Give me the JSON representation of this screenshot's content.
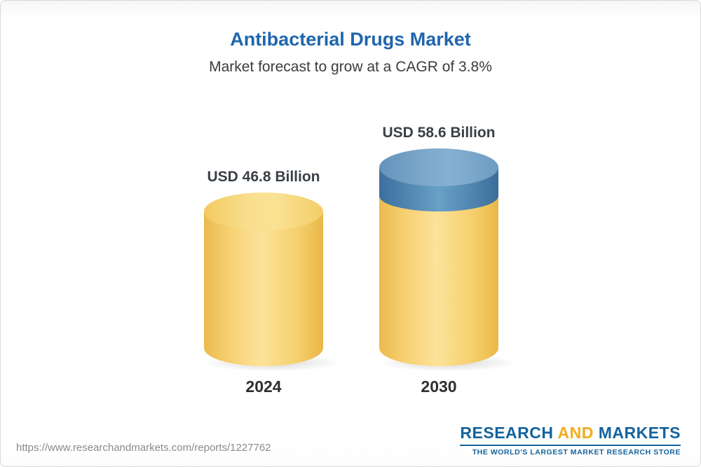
{
  "chart_data": {
    "type": "bar",
    "subtype": "cylinder",
    "title": "Antibacterial Drugs Market",
    "subtitle": "Market forecast to grow at a CAGR of 3.8%",
    "categories": [
      "2024",
      "2030"
    ],
    "values": [
      46.8,
      58.6
    ],
    "value_labels": [
      "USD 46.8 Billion",
      "USD 58.6 Billion"
    ],
    "unit": "USD Billion",
    "cagr_percent": 3.8,
    "legend": "none",
    "axes": "none",
    "colors": {
      "bar_base": "#F5CF6B",
      "bar_growth": "#5C8FBA",
      "title": "#1F66AD"
    }
  },
  "footer": {
    "source_url": "https://www.researchandmarkets.com/reports/1227762",
    "logo": {
      "word1": "RESEARCH",
      "word2": "AND",
      "word3": "MARKETS",
      "tagline": "THE WORLD'S LARGEST MARKET RESEARCH STORE"
    }
  }
}
